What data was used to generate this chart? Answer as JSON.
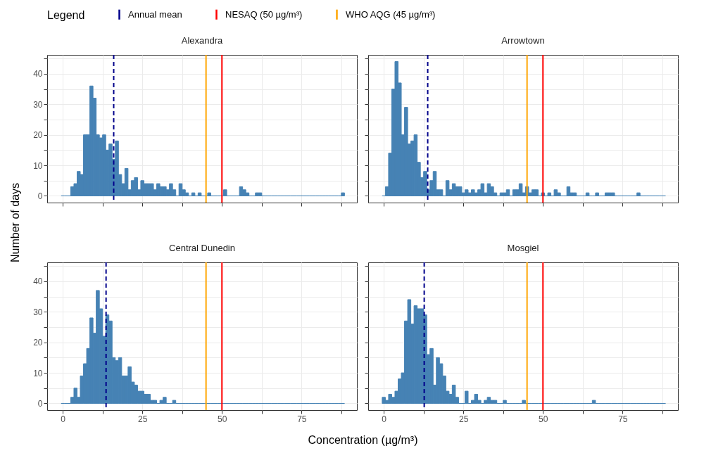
{
  "chart_data": [
    {
      "type": "histogram",
      "title": "Alexandra",
      "ylabel": "Number of days",
      "legend": "top",
      "legend_title": "Legend",
      "grid": true,
      "tick_labels": "y",
      "color": "#4682b4",
      "bins": [
        -0.5,
        0.5,
        1.5,
        2.5,
        3.5,
        4.5,
        5.5,
        6.5,
        7.5,
        8.5,
        9.5,
        10.5,
        11.5,
        12.5,
        13.5,
        14.5,
        15.5,
        16.5,
        17.5,
        18.5,
        19.5,
        20.5,
        21.5,
        22.5,
        23.5,
        24.5,
        25.5,
        26.5,
        27.5,
        28.5,
        29.5,
        30.5,
        31.5,
        32.5,
        33.5,
        34.5,
        35.5,
        36.5,
        37.5,
        38.5,
        39.5,
        40.5,
        41.5,
        42.5,
        43.5,
        44.5,
        45.5,
        46.5,
        47.5,
        48.5,
        49.5,
        50.5,
        51.5,
        52.5,
        53.5,
        54.5,
        55.5,
        56.5,
        57.5,
        58.5,
        59.5,
        60.5,
        61.5,
        62.5,
        63.5,
        64.5,
        65.5,
        66.5,
        67.5,
        68.5,
        69.5,
        70.5,
        71.5,
        72.5,
        73.5,
        74.5,
        75.5,
        76.5,
        77.5,
        78.5,
        79.5,
        80.5,
        81.5,
        82.5,
        83.5,
        84.5,
        85.5,
        86.5,
        87.5,
        88.5
      ],
      "values": [
        0,
        0,
        0,
        3,
        4,
        8,
        7,
        20,
        20,
        36,
        32,
        20,
        19,
        20,
        15,
        17,
        12,
        18,
        7,
        4,
        9,
        2,
        5,
        6,
        2,
        5,
        4,
        4,
        4,
        2,
        4,
        3,
        3,
        2,
        4,
        2,
        0,
        4,
        2,
        1,
        0,
        1,
        0,
        1,
        0,
        0,
        1,
        0,
        0,
        0,
        0,
        2,
        0,
        0,
        0,
        0,
        3,
        2,
        1,
        0,
        0,
        1,
        1,
        0,
        0,
        0,
        0,
        0,
        0,
        0,
        0,
        0,
        0,
        0,
        0,
        0,
        0,
        0,
        0,
        0,
        0,
        0,
        0,
        0,
        0,
        0,
        0,
        0,
        1
      ],
      "xlim": [
        -4.9,
        92.4
      ],
      "xticks": [
        0,
        {
          "value": 12.5,
          "label": null
        },
        25,
        {
          "value": 37.5,
          "label": null
        },
        50,
        {
          "value": 62.5,
          "label": null
        },
        75,
        {
          "value": 87.5,
          "label": null
        }
      ],
      "ylim": [
        -2.2,
        46.2
      ],
      "yticks": [
        0,
        {
          "value": 5,
          "label": null
        },
        10,
        {
          "value": 15,
          "label": null
        },
        20,
        {
          "value": 25,
          "label": null
        },
        30,
        {
          "value": 35,
          "label": null
        },
        40,
        {
          "value": 45,
          "label": null
        }
      ],
      "ref_lines": [
        {
          "axis": "x",
          "value": 16.0,
          "label": "Annual mean",
          "color": "#00008b",
          "line_style": "dashed"
        },
        {
          "axis": "x",
          "value": 50,
          "label": "NESAQ (50 µg/m³)",
          "color": "#ff0000",
          "line_style": "solid"
        },
        {
          "axis": "x",
          "value": 45,
          "label": "WHO AQG (45 µg/m³)",
          "color": "#ffa500",
          "line_style": "solid"
        }
      ]
    },
    {
      "type": "histogram",
      "title": "Arrowtown",
      "grid": true,
      "tick_labels": false,
      "color": "#4682b4",
      "bins": [
        -0.5,
        0.5,
        1.5,
        2.5,
        3.5,
        4.5,
        5.5,
        6.5,
        7.5,
        8.5,
        9.5,
        10.5,
        11.5,
        12.5,
        13.5,
        14.5,
        15.5,
        16.5,
        17.5,
        18.5,
        19.5,
        20.5,
        21.5,
        22.5,
        23.5,
        24.5,
        25.5,
        26.5,
        27.5,
        28.5,
        29.5,
        30.5,
        31.5,
        32.5,
        33.5,
        34.5,
        35.5,
        36.5,
        37.5,
        38.5,
        39.5,
        40.5,
        41.5,
        42.5,
        43.5,
        44.5,
        45.5,
        46.5,
        47.5,
        48.5,
        49.5,
        50.5,
        51.5,
        52.5,
        53.5,
        54.5,
        55.5,
        56.5,
        57.5,
        58.5,
        59.5,
        60.5,
        61.5,
        62.5,
        63.5,
        64.5,
        65.5,
        66.5,
        67.5,
        68.5,
        69.5,
        70.5,
        71.5,
        72.5,
        73.5,
        74.5,
        75.5,
        76.5,
        77.5,
        78.5,
        79.5,
        80.5,
        81.5,
        82.5,
        83.5,
        84.5,
        85.5,
        86.5,
        87.5,
        88.5
      ],
      "values": [
        0,
        3,
        14,
        35,
        44,
        37,
        20,
        29,
        17,
        18,
        20,
        11,
        6,
        8,
        2,
        5,
        8,
        2,
        2,
        0,
        5,
        2,
        4,
        3,
        3,
        1,
        2,
        1,
        2,
        1,
        2,
        4,
        1,
        4,
        3,
        1,
        0,
        1,
        1,
        2,
        0,
        2,
        2,
        4,
        1,
        3,
        1,
        2,
        2,
        0,
        1,
        0,
        1,
        0,
        2,
        1,
        0,
        0,
        3,
        1,
        1,
        0,
        0,
        0,
        1,
        0,
        0,
        1,
        0,
        0,
        1,
        1,
        1,
        0,
        0,
        0,
        0,
        0,
        0,
        0,
        1,
        0,
        0,
        0,
        0,
        0,
        0,
        0,
        0
      ],
      "xlim": [
        -4.9,
        92.4
      ],
      "xticks": [
        0,
        {
          "value": 12.5,
          "label": null
        },
        25,
        {
          "value": 37.5,
          "label": null
        },
        50,
        {
          "value": 62.5,
          "label": null
        },
        75,
        {
          "value": 87.5,
          "label": null
        }
      ],
      "ylim": [
        -2.2,
        46.2
      ],
      "yticks": [
        0,
        {
          "value": 5,
          "label": null
        },
        10,
        {
          "value": 15,
          "label": null
        },
        20,
        {
          "value": 25,
          "label": null
        },
        30,
        {
          "value": 35,
          "label": null
        },
        40,
        {
          "value": 45,
          "label": null
        }
      ],
      "ref_lines": [
        {
          "axis": "x",
          "value": 13.8,
          "color": "#00008b",
          "line_style": "dashed"
        },
        {
          "axis": "x",
          "value": 50,
          "color": "#ff0000",
          "line_style": "solid"
        },
        {
          "axis": "x",
          "value": 45,
          "color": "#ffa500",
          "line_style": "solid"
        }
      ]
    },
    {
      "type": "histogram",
      "title": "Central Dunedin",
      "xlabel": "Concentration (µg/m³)",
      "grid": true,
      "color": "#4682b4",
      "bins": [
        -0.5,
        0.5,
        1.5,
        2.5,
        3.5,
        4.5,
        5.5,
        6.5,
        7.5,
        8.5,
        9.5,
        10.5,
        11.5,
        12.5,
        13.5,
        14.5,
        15.5,
        16.5,
        17.5,
        18.5,
        19.5,
        20.5,
        21.5,
        22.5,
        23.5,
        24.5,
        25.5,
        26.5,
        27.5,
        28.5,
        29.5,
        30.5,
        31.5,
        32.5,
        33.5,
        34.5,
        35.5,
        36.5,
        37.5,
        38.5,
        39.5,
        40.5,
        41.5,
        42.5,
        43.5,
        44.5,
        45.5,
        46.5,
        47.5,
        48.5,
        49.5,
        50.5,
        51.5,
        52.5,
        53.5,
        54.5,
        55.5,
        56.5,
        57.5,
        58.5,
        59.5,
        60.5,
        61.5,
        62.5,
        63.5,
        64.5,
        65.5,
        66.5,
        67.5,
        68.5,
        69.5,
        70.5,
        71.5,
        72.5,
        73.5,
        74.5,
        75.5,
        76.5,
        77.5,
        78.5,
        79.5,
        80.5,
        81.5,
        82.5,
        83.5,
        84.5,
        85.5,
        86.5,
        87.5,
        88.5
      ],
      "values": [
        0,
        0,
        0,
        2,
        5,
        2,
        9,
        13,
        18,
        28,
        23,
        37,
        31,
        22,
        29,
        27,
        15,
        14,
        15,
        9,
        9,
        12,
        7,
        6,
        4,
        4,
        3,
        3,
        1,
        1,
        0,
        1,
        2,
        0,
        0,
        1,
        0,
        0,
        0,
        0,
        0,
        0,
        0,
        0,
        0,
        0,
        0,
        0,
        0,
        0,
        0,
        0,
        0,
        0,
        0,
        0,
        0,
        0,
        0,
        0,
        0,
        0,
        0,
        0,
        0,
        0,
        0,
        0,
        0,
        0,
        0,
        0,
        0,
        0,
        0,
        0,
        0,
        0,
        0,
        0,
        0,
        0,
        0,
        0,
        0,
        0,
        0,
        0,
        0
      ],
      "xlim": [
        -4.9,
        92.4
      ],
      "xticks": [
        0,
        {
          "value": 12.5,
          "label": null
        },
        25,
        {
          "value": 37.5,
          "label": null
        },
        50,
        {
          "value": 62.5,
          "label": null
        },
        75,
        {
          "value": 87.5,
          "label": null
        }
      ],
      "ylim": [
        -2.2,
        46.2
      ],
      "yticks": [
        0,
        {
          "value": 5,
          "label": null
        },
        10,
        {
          "value": 15,
          "label": null
        },
        20,
        {
          "value": 25,
          "label": null
        },
        30,
        {
          "value": 35,
          "label": null
        },
        40,
        {
          "value": 45,
          "label": null
        }
      ],
      "ref_lines": [
        {
          "axis": "x",
          "value": 13.6,
          "color": "#00008b",
          "line_style": "dashed"
        },
        {
          "axis": "x",
          "value": 50,
          "color": "#ff0000",
          "line_style": "solid"
        },
        {
          "axis": "x",
          "value": 45,
          "color": "#ffa500",
          "line_style": "solid"
        }
      ]
    },
    {
      "type": "histogram",
      "title": "Mosgiel",
      "grid": true,
      "tick_labels": "x",
      "color": "#4682b4",
      "bins": [
        -0.5,
        0.5,
        1.5,
        2.5,
        3.5,
        4.5,
        5.5,
        6.5,
        7.5,
        8.5,
        9.5,
        10.5,
        11.5,
        12.5,
        13.5,
        14.5,
        15.5,
        16.5,
        17.5,
        18.5,
        19.5,
        20.5,
        21.5,
        22.5,
        23.5,
        24.5,
        25.5,
        26.5,
        27.5,
        28.5,
        29.5,
        30.5,
        31.5,
        32.5,
        33.5,
        34.5,
        35.5,
        36.5,
        37.5,
        38.5,
        39.5,
        40.5,
        41.5,
        42.5,
        43.5,
        44.5,
        45.5,
        46.5,
        47.5,
        48.5,
        49.5,
        50.5,
        51.5,
        52.5,
        53.5,
        54.5,
        55.5,
        56.5,
        57.5,
        58.5,
        59.5,
        60.5,
        61.5,
        62.5,
        63.5,
        64.5,
        65.5,
        66.5,
        67.5,
        68.5,
        69.5,
        70.5,
        71.5,
        72.5,
        73.5,
        74.5,
        75.5,
        76.5,
        77.5,
        78.5,
        79.5,
        80.5,
        81.5,
        82.5,
        83.5,
        84.5,
        85.5,
        86.5,
        87.5,
        88.5
      ],
      "values": [
        2,
        1,
        3,
        2,
        4,
        8,
        10,
        27,
        34,
        26,
        32,
        31,
        31,
        29,
        16,
        18,
        6,
        15,
        13,
        9,
        4,
        3,
        6,
        2,
        0,
        0,
        4,
        0,
        1,
        3,
        1,
        0,
        1,
        2,
        1,
        1,
        0,
        0,
        1,
        0,
        0,
        0,
        0,
        0,
        1,
        0,
        0,
        0,
        0,
        0,
        0,
        0,
        0,
        0,
        0,
        0,
        0,
        0,
        0,
        0,
        0,
        0,
        0,
        0,
        0,
        0,
        1,
        0,
        0,
        0,
        0,
        0,
        0,
        0,
        0,
        0,
        0,
        0,
        0,
        0,
        0,
        0,
        0,
        0,
        0,
        0,
        0,
        0,
        0
      ],
      "xlim": [
        -4.9,
        92.4
      ],
      "xticks": [
        0,
        {
          "value": 12.5,
          "label": null
        },
        25,
        {
          "value": 37.5,
          "label": null
        },
        50,
        {
          "value": 62.5,
          "label": null
        },
        75,
        {
          "value": 87.5,
          "label": null
        }
      ],
      "ylim": [
        -2.2,
        46.2
      ],
      "yticks": [
        0,
        {
          "value": 5,
          "label": null
        },
        10,
        {
          "value": 15,
          "label": null
        },
        20,
        {
          "value": 25,
          "label": null
        },
        30,
        {
          "value": 35,
          "label": null
        },
        40,
        {
          "value": 45,
          "label": null
        }
      ],
      "ref_lines": [
        {
          "axis": "x",
          "value": 12.7,
          "color": "#00008b",
          "line_style": "dashed"
        },
        {
          "axis": "x",
          "value": 50,
          "color": "#ff0000",
          "line_style": "solid"
        },
        {
          "axis": "x",
          "value": 45,
          "color": "#ffa500",
          "line_style": "solid"
        }
      ]
    }
  ]
}
